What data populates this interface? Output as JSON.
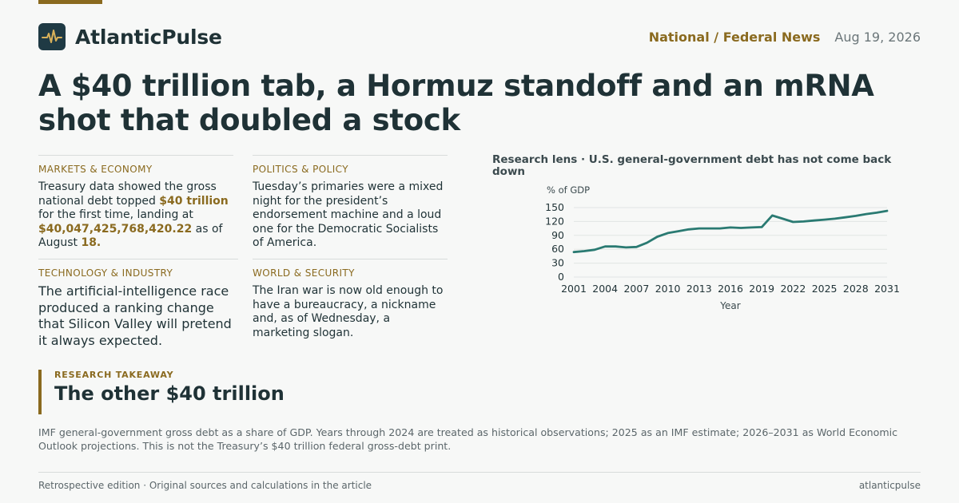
{
  "header": {
    "brand": "AtlanticPulse",
    "logo_icon": "pulse-waveform-icon",
    "section": "National / Federal News",
    "date": "Aug 19, 2026"
  },
  "headline": "A $40 trillion tab, a Hormuz standoff and an mRNA shot that doubled a stock",
  "briefs": {
    "markets": {
      "tag": "Markets & Economy",
      "text_1": "Treasury data showed the gross national debt topped ",
      "highlight_1": "$40 trillion",
      "text_2": " for the first time, landing at ",
      "highlight_2": "$40,047,425,768,420.22",
      "text_3": " as of August ",
      "highlight_3": "18."
    },
    "politics": {
      "tag": "Politics & Policy",
      "text": "Tuesday’s primaries were a mixed night for the president’s endorsement machine and a loud one for the Democratic Socialists of America."
    },
    "technology": {
      "tag": "Technology & Industry",
      "text": "The artificial-intelligence race produced a ranking change that Silicon Valley will pretend it always expected."
    },
    "world": {
      "tag": "World & Security",
      "text": "The Iran war is now old enough to have a bureaucracy, a nickname and, as of Wednesday, a marketing slogan."
    }
  },
  "chart_data": {
    "type": "line",
    "title": "Research lens · U.S. general-government debt has not come back down",
    "ylabel": "% of GDP",
    "xlabel": "Year",
    "xlim": [
      2001,
      2031
    ],
    "ylim": [
      0,
      150
    ],
    "x_ticks": [
      2001,
      2004,
      2007,
      2010,
      2013,
      2016,
      2019,
      2022,
      2025,
      2028,
      2031
    ],
    "y_ticks": [
      0,
      30,
      60,
      90,
      120,
      150
    ],
    "grid": true,
    "line_color": "#2a7a72",
    "series": [
      {
        "x": [
          2001,
          2002,
          2003,
          2004,
          2005,
          2006,
          2007,
          2008,
          2009,
          2010,
          2011,
          2012,
          2013,
          2014,
          2015,
          2016,
          2017,
          2018,
          2019,
          2020,
          2021,
          2022,
          2023,
          2024,
          2025,
          2026,
          2027,
          2028,
          2029,
          2030,
          2031
        ],
        "values": [
          54,
          56,
          59,
          66,
          66,
          64,
          65,
          74,
          87,
          95,
          99,
          103,
          105,
          105,
          105,
          107,
          106,
          107,
          108,
          133,
          126,
          119,
          120,
          122,
          124,
          126,
          129,
          132,
          136,
          139,
          143
        ]
      }
    ]
  },
  "takeaway": {
    "label": "Research Takeaway",
    "title": "The other $40 trillion"
  },
  "note": "IMF general-government gross debt as a share of GDP. Years through 2024 are treated as historical observations; 2025 as an IMF estimate; 2026–2031 as World Economic Outlook projections. This is not the Treasury’s $40 trillion federal gross-debt print.",
  "footer": {
    "left": "Retrospective edition · Original sources and calculations in the article",
    "right": "atlanticpulse"
  }
}
